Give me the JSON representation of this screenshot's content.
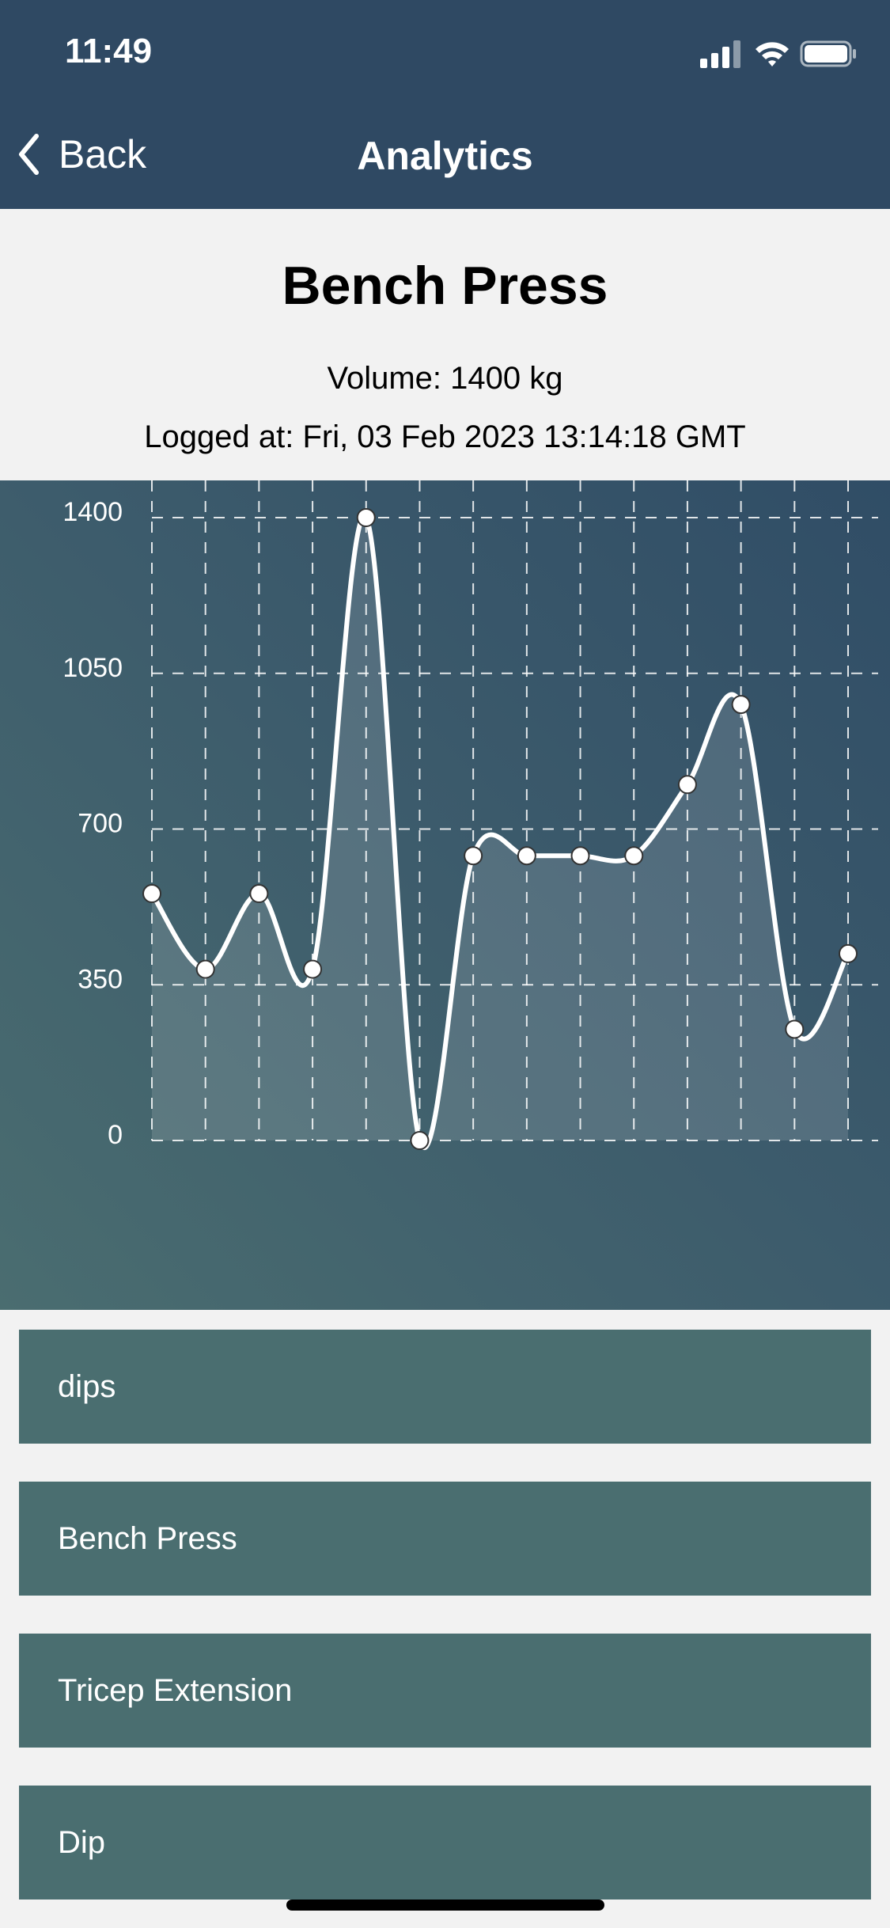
{
  "status_bar": {
    "time": "11:49",
    "icons": [
      "signal-icon",
      "wifi-icon",
      "battery-icon"
    ]
  },
  "nav": {
    "back_label": "Back",
    "title": "Analytics"
  },
  "exercise": {
    "title": "Bench Press",
    "volume_text": "Volume: 1400 kg",
    "logged_text": "Logged at: Fri, 03 Feb 2023 13:14:18 GMT"
  },
  "colors": {
    "header_bg": "#2f4963",
    "list_item_bg": "#4a6e70",
    "page_bg": "#f2f2f2",
    "line": "#ffffff"
  },
  "chart_data": {
    "type": "line",
    "series": [
      {
        "values": [
          555,
          385,
          555,
          385,
          1400,
          0,
          640,
          640,
          640,
          640,
          800,
          980,
          250,
          420
        ]
      }
    ],
    "yticks": [
      "1400",
      "1050",
      "700",
      "350",
      "0"
    ],
    "ylim": [
      0,
      1400
    ],
    "grid": true,
    "legend": "none",
    "xlabel": "",
    "ylabel": ""
  },
  "list": {
    "items": [
      {
        "label": "dips"
      },
      {
        "label": "Bench Press"
      },
      {
        "label": "Tricep Extension"
      },
      {
        "label": "Dip"
      }
    ]
  }
}
